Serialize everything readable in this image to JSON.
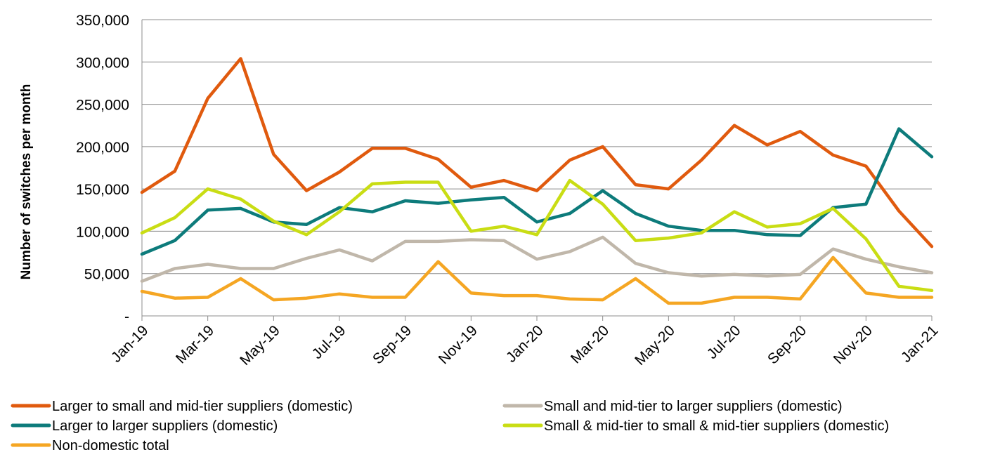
{
  "chart_data": {
    "type": "line",
    "title": "",
    "xlabel": "",
    "ylabel": "Number of switches per month",
    "ylim": [
      0,
      350000
    ],
    "yticks": [
      {
        "value": 0,
        "label": "-"
      },
      {
        "value": 50000,
        "label": "50,000"
      },
      {
        "value": 100000,
        "label": "100,000"
      },
      {
        "value": 150000,
        "label": "150,000"
      },
      {
        "value": 200000,
        "label": "200,000"
      },
      {
        "value": 250000,
        "label": "250,000"
      },
      {
        "value": 300000,
        "label": "300,000"
      },
      {
        "value": 350000,
        "label": "350,000"
      }
    ],
    "x": [
      "Jan-19",
      "Feb-19",
      "Mar-19",
      "Apr-19",
      "May-19",
      "Jun-19",
      "Jul-19",
      "Aug-19",
      "Sep-19",
      "Oct-19",
      "Nov-19",
      "Dec-19",
      "Jan-20",
      "Feb-20",
      "Mar-20",
      "Apr-20",
      "May-20",
      "Jun-20",
      "Jul-20",
      "Aug-20",
      "Sep-20",
      "Oct-20",
      "Nov-20",
      "Dec-20",
      "Jan-21"
    ],
    "xtick_labels": [
      "Jan-19",
      "Mar-19",
      "May-19",
      "Jul-19",
      "Sep-19",
      "Nov-19",
      "Jan-20",
      "Mar-20",
      "May-20",
      "Jul-20",
      "Sep-20",
      "Nov-20",
      "Jan-21"
    ],
    "grid": "horizontal",
    "legend_position": "bottom",
    "series": [
      {
        "name": "Larger to small and mid-tier suppliers (domestic)",
        "color": "#E05A0E",
        "values": [
          146000,
          171000,
          257000,
          304000,
          191000,
          148000,
          170000,
          198000,
          198000,
          185000,
          152000,
          160000,
          148000,
          184000,
          200000,
          155000,
          150000,
          184000,
          225000,
          202000,
          218000,
          190000,
          177000,
          124000,
          82000
        ]
      },
      {
        "name": "Larger to larger suppliers (domestic)",
        "color": "#0D7B7B",
        "values": [
          73000,
          89000,
          125000,
          127000,
          111000,
          108000,
          128000,
          123000,
          136000,
          133000,
          137000,
          140000,
          111000,
          121000,
          148000,
          121000,
          106000,
          101000,
          101000,
          96000,
          95000,
          128000,
          132000,
          221000,
          188000
        ]
      },
      {
        "name": "Non-domestic total",
        "color": "#F5A623",
        "values": [
          29000,
          21000,
          22000,
          44000,
          19000,
          21000,
          26000,
          22000,
          22000,
          64000,
          27000,
          24000,
          24000,
          20000,
          19000,
          44000,
          15000,
          15000,
          22000,
          22000,
          20000,
          69000,
          27000,
          22000,
          22000
        ]
      },
      {
        "name": "Small and mid-tier to larger suppliers (domestic)",
        "color": "#C0B7AA",
        "values": [
          41000,
          56000,
          61000,
          56000,
          56000,
          68000,
          78000,
          65000,
          88000,
          88000,
          90000,
          89000,
          67000,
          76000,
          93000,
          62000,
          51000,
          47000,
          49000,
          47000,
          49000,
          79000,
          67000,
          58000,
          51000
        ]
      },
      {
        "name": "Small & mid-tier to small & mid-tier suppliers (domestic)",
        "color": "#C9DD14",
        "values": [
          98000,
          116000,
          150000,
          138000,
          112000,
          96000,
          123000,
          156000,
          158000,
          158000,
          100000,
          106000,
          96000,
          160000,
          132000,
          89000,
          92000,
          98000,
          123000,
          105000,
          109000,
          127000,
          91000,
          35000,
          30000
        ]
      }
    ]
  }
}
